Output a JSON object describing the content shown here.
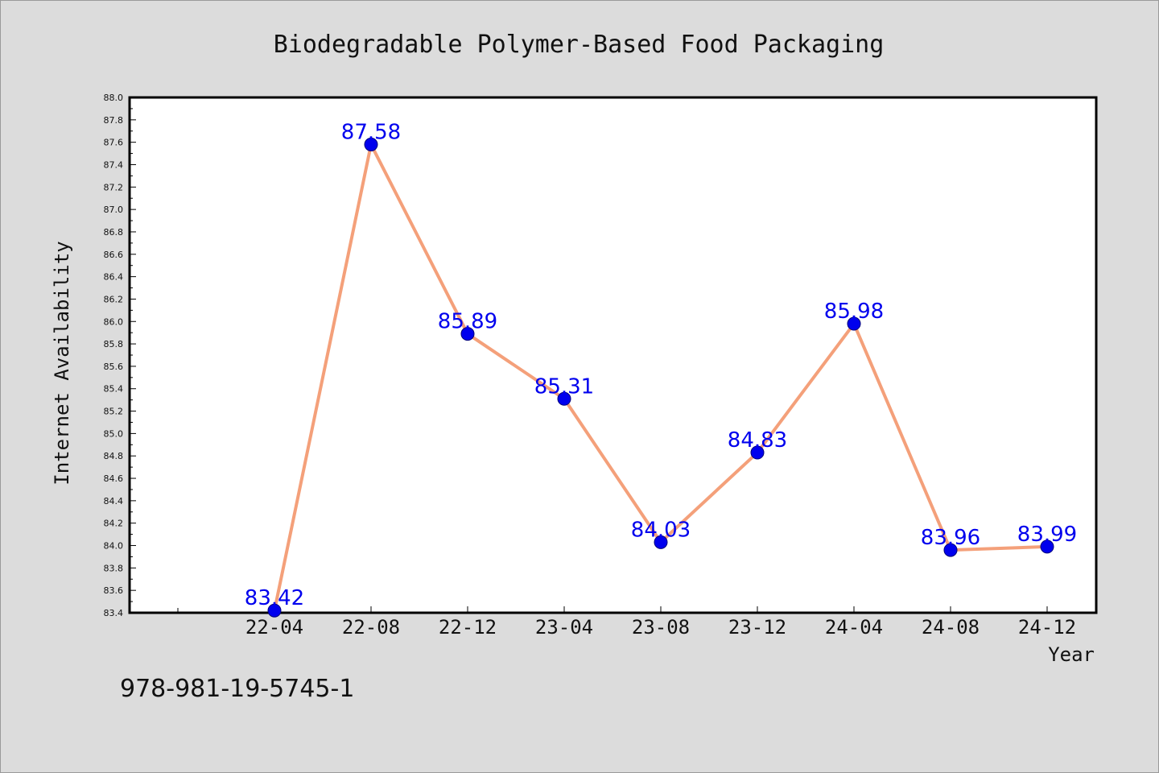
{
  "chart_data": {
    "type": "line",
    "title": "Biodegradable Polymer-Based Food Packaging",
    "xlabel": "Year",
    "ylabel": "Internet Availability",
    "categories": [
      "22-04",
      "22-08",
      "22-12",
      "23-04",
      "23-08",
      "23-12",
      "24-04",
      "24-08",
      "24-12"
    ],
    "series": [
      {
        "values": [
          83.42,
          87.58,
          85.89,
          85.31,
          84.03,
          84.83,
          85.98,
          83.96,
          83.99
        ],
        "data_labels": [
          "83.42",
          "87.58",
          "85.89",
          "85.31",
          "84.03",
          "84.83",
          "85.98",
          "83.96",
          "83.99"
        ],
        "line_color": "#f4a07a",
        "marker_color": "#0000ee"
      }
    ],
    "ylim": [
      83.4,
      88.0
    ],
    "yticks": [
      "83.4",
      "83.6",
      "83.8",
      "84.0",
      "84.2",
      "84.4",
      "84.6",
      "84.8",
      "85.0",
      "85.2",
      "85.4",
      "85.6",
      "85.8",
      "86.0",
      "86.2",
      "86.4",
      "86.6",
      "86.8",
      "87.0",
      "87.2",
      "87.4",
      "87.6",
      "87.8",
      "88.0"
    ],
    "grid": false,
    "legend": "none",
    "background": "#dcdcdc",
    "plot_background": "#ffffff",
    "label_color": "#0000ee"
  },
  "footer": {
    "identifier": "978-981-19-5745-1"
  }
}
